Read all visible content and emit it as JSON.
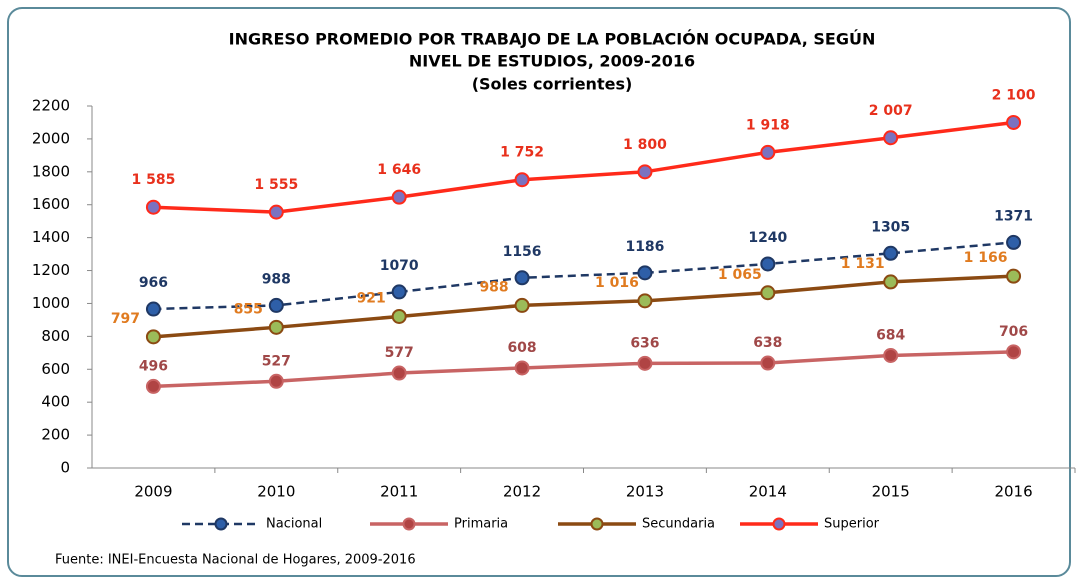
{
  "chart_data": {
    "type": "line",
    "title": [
      "INGRESO PROMEDIO POR TRABAJO DE LA POBLACIÓN OCUPADA, SEGÚN",
      "NIVEL DE ESTUDIOS, 2009-2016"
    ],
    "subtitle": "(Soles corrientes)",
    "categories": [
      "2009",
      "2010",
      "2011",
      "2012",
      "2013",
      "2014",
      "2015",
      "2016"
    ],
    "series": [
      {
        "name": "Nacional",
        "color": "#1f3864",
        "marker_color": "#2e5fa8",
        "label_color": "#1f3864",
        "dashed": true,
        "values": [
          966,
          988,
          1070,
          1156,
          1186,
          1240,
          1305,
          1371
        ]
      },
      {
        "name": "Primaria",
        "color": "#c86464",
        "marker_color": "#b04444",
        "label_color": "#a04848",
        "dashed": false,
        "values": [
          496,
          527,
          577,
          608,
          636,
          638,
          684,
          706
        ]
      },
      {
        "name": "Secundaria",
        "color": "#8b4a12",
        "marker_color": "#9bbb59",
        "label_color": "#e07b20",
        "dashed": false,
        "values": [
          797,
          855,
          921,
          988,
          1016,
          1065,
          1131,
          1166
        ],
        "value_labels": [
          "797",
          "855",
          "921",
          "988",
          "1 016",
          "1 065",
          "1 131",
          "1 166"
        ]
      },
      {
        "name": "Superior",
        "color": "#ff2a1a",
        "marker_color": "#7b72c0",
        "label_color": "#e8301c",
        "dashed": false,
        "values": [
          1585,
          1555,
          1646,
          1752,
          1800,
          1918,
          2007,
          2100
        ],
        "value_labels": [
          "1 585",
          "1 555",
          "1 646",
          "1 752",
          "1 800",
          "1 918",
          "2 007",
          "2 100"
        ]
      }
    ],
    "ylim": [
      0,
      2200
    ],
    "yticks": [
      0,
      200,
      400,
      600,
      800,
      1000,
      1200,
      1400,
      1600,
      1800,
      2000,
      2200
    ],
    "grid": false,
    "legend": "bottom",
    "source": "Fuente: INEI-Encuesta Nacional de Hogares, 2009-2016"
  }
}
